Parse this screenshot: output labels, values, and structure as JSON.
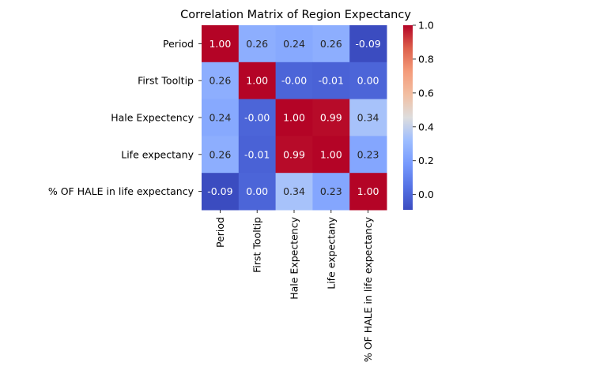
{
  "chart_data": {
    "type": "heatmap",
    "title": "Correlation Matrix of Region Expectancy",
    "xlabel": "",
    "ylabel": "",
    "rows": [
      "Period",
      "First Tooltip",
      "Hale Expectency",
      "Life expectany",
      "% OF HALE in life expectancy"
    ],
    "columns": [
      "Period",
      "First Tooltip",
      "Hale Expectency",
      "Life expectany",
      "% OF HALE in life expectancy"
    ],
    "values": [
      [
        1.0,
        0.26,
        0.24,
        0.26,
        -0.09
      ],
      [
        0.26,
        1.0,
        -0.0,
        -0.01,
        0.0
      ],
      [
        0.24,
        -0.0,
        1.0,
        0.99,
        0.34
      ],
      [
        0.26,
        -0.01,
        0.99,
        1.0,
        0.23
      ],
      [
        -0.09,
        0.0,
        0.34,
        0.23,
        1.0
      ]
    ],
    "labels": [
      [
        "1.00",
        "0.26",
        "0.24",
        "0.26",
        "-0.09"
      ],
      [
        "0.26",
        "1.00",
        "-0.00",
        "-0.01",
        "0.00"
      ],
      [
        "0.24",
        "-0.00",
        "1.00",
        "0.99",
        "0.34"
      ],
      [
        "0.26",
        "-0.01",
        "0.99",
        "1.00",
        "0.23"
      ],
      [
        "-0.09",
        "0.00",
        "0.34",
        "0.23",
        "1.00"
      ]
    ],
    "colormap": "coolwarm",
    "colorbar": {
      "range": [
        -0.09,
        1.0
      ],
      "ticks": [
        0.0,
        0.2,
        0.4,
        0.6,
        0.8,
        1.0
      ],
      "tick_labels": [
        "0.0",
        "0.2",
        "0.4",
        "0.6",
        "0.8",
        "1.0"
      ]
    }
  }
}
